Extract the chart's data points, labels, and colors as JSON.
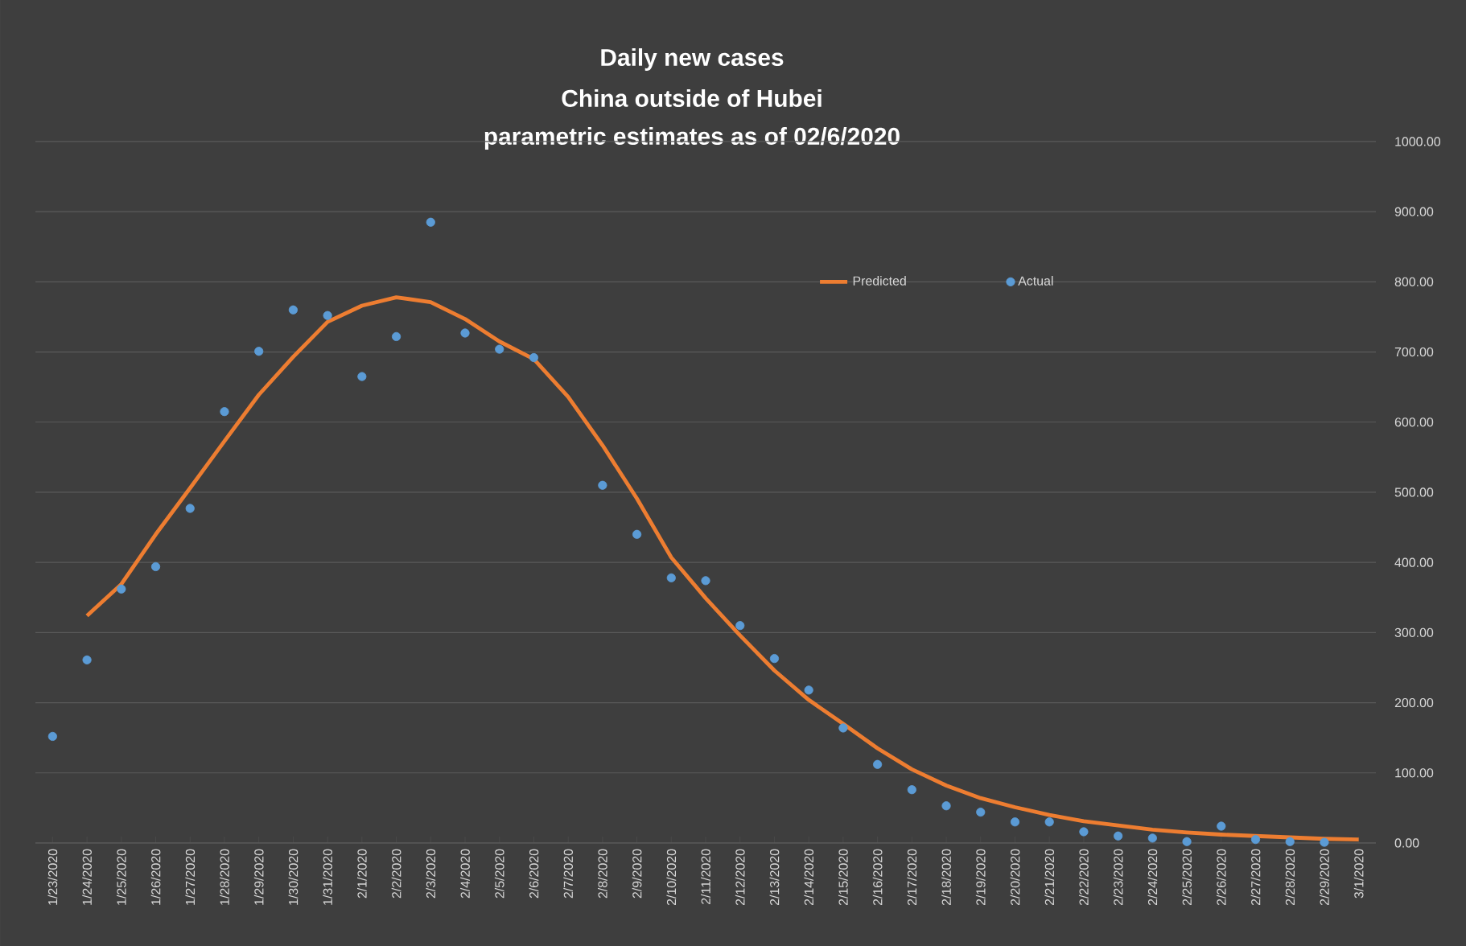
{
  "chart_data": {
    "type": "line",
    "title": "Daily new cases",
    "subtitle": "China outside of Hubei",
    "annotations": [
      "parametric estimates as of 02/6/2020"
    ],
    "categories": [
      "1/23/2020",
      "1/24/2020",
      "1/25/2020",
      "1/26/2020",
      "1/27/2020",
      "1/28/2020",
      "1/29/2020",
      "1/30/2020",
      "1/31/2020",
      "2/1/2020",
      "2/2/2020",
      "2/3/2020",
      "2/4/2020",
      "2/5/2020",
      "2/6/2020",
      "2/7/2020",
      "2/8/2020",
      "2/9/2020",
      "2/10/2020",
      "2/11/2020",
      "2/12/2020",
      "2/13/2020",
      "2/14/2020",
      "2/15/2020",
      "2/16/2020",
      "2/17/2020",
      "2/18/2020",
      "2/19/2020",
      "2/20/2020",
      "2/21/2020",
      "2/22/2020",
      "2/23/2020",
      "2/24/2020",
      "2/25/2020",
      "2/26/2020",
      "2/27/2020",
      "2/28/2020",
      "2/29/2020",
      "3/1/2020"
    ],
    "series": [
      {
        "name": "Predicted",
        "color": "#ed7d31",
        "marker": "none",
        "values": [
          null,
          324,
          369,
          440,
          506,
          573,
          639,
          693,
          743,
          766,
          778,
          771,
          747,
          715,
          690,
          636,
          567,
          491,
          407,
          349,
          296,
          246,
          204,
          170,
          135,
          105,
          82,
          64,
          51,
          40,
          31,
          25,
          19,
          15,
          12,
          10,
          8,
          6,
          5
        ]
      },
      {
        "name": "Actual",
        "type": "scatter",
        "color": "#5b9bd5",
        "marker": "circle",
        "values": [
          152,
          261,
          362,
          394,
          477,
          615,
          701,
          760,
          752,
          665,
          722,
          885,
          727,
          704,
          692,
          null,
          510,
          440,
          378,
          374,
          310,
          263,
          218,
          164,
          112,
          76,
          53,
          44,
          30,
          30,
          16,
          10,
          7,
          2,
          24,
          5,
          2,
          1,
          null
        ]
      }
    ],
    "ylim": [
      0,
      1000
    ],
    "yticks": [
      {
        "value": 0,
        "label": "0.00"
      },
      {
        "value": 100,
        "label": "100.00"
      },
      {
        "value": 200,
        "label": "200.00"
      },
      {
        "value": 300,
        "label": "300.00"
      },
      {
        "value": 400,
        "label": "400.00"
      },
      {
        "value": 500,
        "label": "500.00"
      },
      {
        "value": 600,
        "label": "600.00"
      },
      {
        "value": 700,
        "label": "700.00"
      },
      {
        "value": 800,
        "label": "800.00"
      },
      {
        "value": 900,
        "label": "900.00"
      },
      {
        "value": 1000,
        "label": "1000.00"
      }
    ],
    "grid": "y",
    "legend": "top right"
  }
}
